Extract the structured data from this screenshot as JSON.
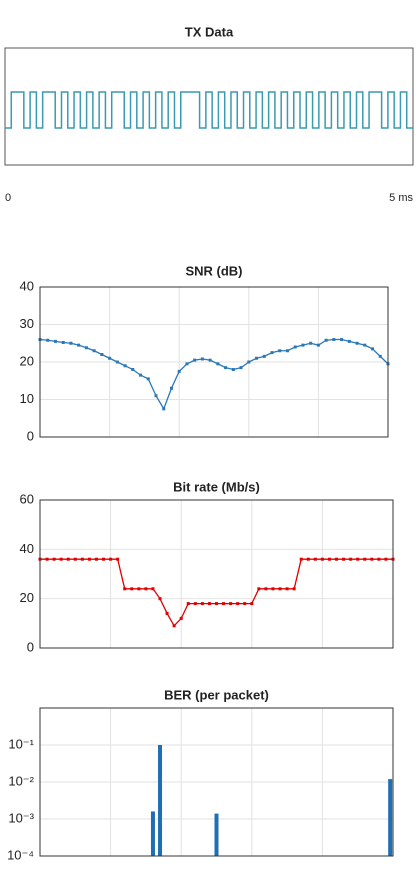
{
  "chart_data": [
    {
      "type": "step",
      "title": "TX Data",
      "color": "#3a9ab0",
      "xlim": [
        0,
        5
      ],
      "xticks": [
        {
          "value": 0,
          "label": "0"
        },
        {
          "value": 5,
          "label": "5 ms"
        }
      ],
      "values": [
        0,
        1,
        1,
        0,
        1,
        0,
        1,
        1,
        0,
        1,
        0,
        1,
        0,
        1,
        0,
        1,
        0,
        1,
        1,
        0,
        1,
        0,
        1,
        0,
        1,
        0,
        1,
        0,
        1,
        1,
        1,
        0,
        1,
        0,
        1,
        0,
        1,
        0,
        1,
        0,
        1,
        0,
        1,
        0,
        1,
        0,
        1,
        0,
        1,
        0,
        1,
        0,
        1,
        0,
        1,
        0,
        1,
        0,
        1,
        1,
        0,
        1,
        0,
        1,
        0
      ]
    },
    {
      "type": "line",
      "title": "SNR (dB)",
      "color": "#2a78b8",
      "grid": true,
      "ylim": [
        0,
        40
      ],
      "yticks": [
        0,
        10,
        20,
        30,
        40
      ],
      "xlim": [
        0,
        45
      ],
      "x": [
        0,
        1,
        2,
        3,
        4,
        5,
        6,
        7,
        8,
        9,
        10,
        11,
        12,
        13,
        14,
        15,
        16,
        17,
        18,
        19,
        20,
        21,
        22,
        23,
        24,
        25,
        26,
        27,
        28,
        29,
        30,
        31,
        32,
        33,
        34,
        35,
        36,
        37,
        38,
        39,
        40,
        41,
        42,
        43,
        44,
        45
      ],
      "values": [
        26,
        25.8,
        25.5,
        25.2,
        25,
        24.5,
        23.8,
        23,
        22,
        21,
        20,
        19,
        18,
        16.5,
        15.5,
        11,
        7.5,
        13,
        17.5,
        19.5,
        20.5,
        20.8,
        20.5,
        19.5,
        18.5,
        18,
        18.5,
        20,
        21,
        21.5,
        22.5,
        23,
        23,
        24,
        24.5,
        25,
        24.5,
        25.8,
        26,
        26,
        25.5,
        25,
        24.5,
        23.5,
        21.5,
        19.5
      ]
    },
    {
      "type": "line",
      "title": "Bit rate (Mb/s)",
      "color": "#e00000",
      "grid": true,
      "ylim": [
        0,
        60
      ],
      "yticks": [
        0,
        20,
        40,
        60
      ],
      "xlim": [
        0,
        50
      ],
      "x": [
        0,
        1,
        2,
        3,
        4,
        5,
        6,
        7,
        8,
        9,
        10,
        11,
        12,
        13,
        14,
        15,
        16,
        17,
        18,
        19,
        20,
        21,
        22,
        23,
        24,
        25,
        26,
        27,
        28,
        29,
        30,
        31,
        32,
        33,
        34,
        35,
        36,
        37,
        38,
        39,
        40,
        41,
        42,
        43,
        44,
        45,
        46,
        47,
        48,
        49,
        50
      ],
      "values": [
        36,
        36,
        36,
        36,
        36,
        36,
        36,
        36,
        36,
        36,
        36,
        36,
        24,
        24,
        24,
        24,
        24,
        20,
        14,
        9,
        12,
        18,
        18,
        18,
        18,
        18,
        18,
        18,
        18,
        18,
        18,
        24,
        24,
        24,
        24,
        24,
        24,
        36,
        36,
        36,
        36,
        36,
        36,
        36,
        36,
        36,
        36,
        36,
        36,
        36,
        36
      ]
    },
    {
      "type": "bar",
      "title": "BER (per packet)",
      "color": "#1f6fb5",
      "grid": true,
      "log_scale": true,
      "ylim": [
        0.0001,
        1
      ],
      "xlim": [
        0,
        50
      ],
      "yticks": [
        {
          "value": 0.0001,
          "label": "10⁻⁴"
        },
        {
          "value": 0.001,
          "label": "10⁻³"
        },
        {
          "value": 0.01,
          "label": "10⁻²"
        },
        {
          "value": 0.1,
          "label": "10⁻¹"
        }
      ],
      "x": [
        16,
        17,
        25,
        49.6
      ],
      "values": [
        0.0016,
        0.1,
        0.0014,
        0.012
      ]
    }
  ]
}
